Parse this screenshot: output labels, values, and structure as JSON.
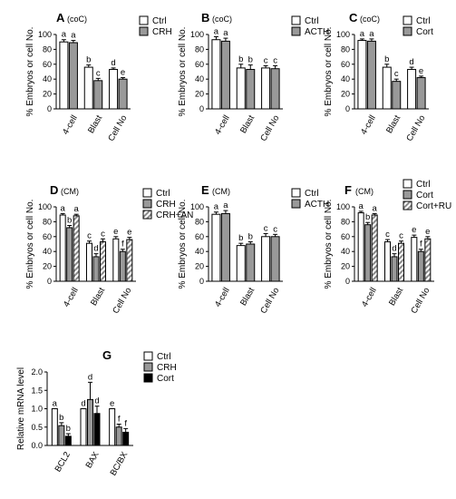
{
  "chart_data": [
    {
      "type": "bar",
      "panel": "A",
      "condition": "(coC)",
      "ylabel": "% Embryos or cell No.",
      "ylim": [
        0,
        100
      ],
      "yticks": [
        "0",
        "20",
        "40",
        "60",
        "80",
        "100"
      ],
      "categories": [
        "4-cell",
        "Blast",
        "Cell No"
      ],
      "series": [
        {
          "name": "Ctrl",
          "values": [
            90,
            56,
            53
          ],
          "errors": [
            3,
            3,
            2
          ],
          "letters": [
            "a",
            "b",
            "d"
          ]
        },
        {
          "name": "CRH",
          "values": [
            89,
            38,
            40
          ],
          "errors": [
            3,
            3,
            2
          ],
          "letters": [
            "a",
            "c",
            "e"
          ]
        }
      ]
    },
    {
      "type": "bar",
      "panel": "B",
      "condition": "(coC)",
      "ylabel": "% Embryos or cell No.",
      "ylim": [
        0,
        100
      ],
      "yticks": [
        "0",
        "20",
        "40",
        "60",
        "80",
        "100"
      ],
      "categories": [
        "4-cell",
        "Blast",
        "Cell No"
      ],
      "series": [
        {
          "name": "Ctrl",
          "values": [
            93,
            55,
            55
          ],
          "errors": [
            4,
            5,
            3
          ],
          "letters": [
            "a",
            "b",
            "c"
          ]
        },
        {
          "name": "ACTH",
          "values": [
            91,
            53,
            54
          ],
          "errors": [
            4,
            6,
            4
          ],
          "letters": [
            "a",
            "b",
            "c"
          ]
        }
      ]
    },
    {
      "type": "bar",
      "panel": "C",
      "condition": "(coC)",
      "ylabel": "% Embryos or cell No.",
      "ylim": [
        0,
        100
      ],
      "yticks": [
        "0",
        "20",
        "40",
        "60",
        "80",
        "100"
      ],
      "categories": [
        "4-cell",
        "Blast",
        "Cell No"
      ],
      "series": [
        {
          "name": "Ctrl",
          "values": [
            92,
            56,
            53
          ],
          "errors": [
            2,
            4,
            3
          ],
          "letters": [
            "a",
            "b",
            "d"
          ]
        },
        {
          "name": "Cort",
          "values": [
            91,
            37,
            42
          ],
          "errors": [
            3,
            3,
            2
          ],
          "letters": [
            "a",
            "c",
            "e"
          ]
        }
      ]
    },
    {
      "type": "bar",
      "panel": "D",
      "condition": "(CM)",
      "ylabel": "% Embryos or cell No.",
      "ylim": [
        0,
        100
      ],
      "yticks": [
        "0",
        "20",
        "40",
        "60",
        "80",
        "100"
      ],
      "categories": [
        "4-cell",
        "Blast",
        "Cell No"
      ],
      "series": [
        {
          "name": "Ctrl",
          "values": [
            89,
            51,
            57
          ],
          "errors": [
            2,
            3,
            3
          ],
          "letters": [
            "a",
            "c",
            "e"
          ]
        },
        {
          "name": "CRH",
          "values": [
            72,
            33,
            40
          ],
          "errors": [
            3,
            4,
            3
          ],
          "letters": [
            "b",
            "d",
            "f"
          ]
        },
        {
          "name": "CRH+AN",
          "values": [
            88,
            53,
            56
          ],
          "errors": [
            2,
            4,
            3
          ],
          "letters": [
            "a",
            "c",
            "e"
          ]
        }
      ]
    },
    {
      "type": "bar",
      "panel": "E",
      "condition": "(CM)",
      "ylabel": "% Embryos or cell No.",
      "ylim": [
        0,
        100
      ],
      "yticks": [
        "0",
        "20",
        "40",
        "60",
        "80",
        "100"
      ],
      "categories": [
        "4-cell",
        "Blast",
        "Cell No"
      ],
      "series": [
        {
          "name": "Ctrl",
          "values": [
            90,
            48,
            60
          ],
          "errors": [
            3,
            3,
            4
          ],
          "letters": [
            "a",
            "b",
            "c"
          ]
        },
        {
          "name": "ACTH",
          "values": [
            91,
            50,
            60
          ],
          "errors": [
            4,
            3,
            3
          ],
          "letters": [
            "a",
            "b",
            "c"
          ]
        }
      ]
    },
    {
      "type": "bar",
      "panel": "F",
      "condition": "(CM)",
      "ylabel": "% Embryos or cell No.",
      "ylim": [
        0,
        100
      ],
      "yticks": [
        "0",
        "20",
        "40",
        "60",
        "80",
        "100"
      ],
      "categories": [
        "4-cell",
        "Blast",
        "Cell No"
      ],
      "series": [
        {
          "name": "Ctrl",
          "values": [
            92,
            53,
            59
          ],
          "errors": [
            2,
            3,
            3
          ],
          "letters": [
            "a",
            "c",
            "e"
          ]
        },
        {
          "name": "Cort",
          "values": [
            76,
            33,
            40
          ],
          "errors": [
            3,
            4,
            3
          ],
          "letters": [
            "b",
            "d",
            "f"
          ]
        },
        {
          "name": "Cort+RU",
          "values": [
            89,
            51,
            57
          ],
          "errors": [
            2,
            3,
            3
          ],
          "letters": [
            "a",
            "c",
            "e"
          ]
        }
      ]
    },
    {
      "type": "bar",
      "panel": "G",
      "condition": "",
      "ylabel": "Relative mRNA level",
      "ylim": [
        0,
        2.0
      ],
      "yticks": [
        "0.0",
        "0.5",
        "1.0",
        "1.5",
        "2.0"
      ],
      "categories": [
        "BCL2",
        "BAX",
        "BC/BX"
      ],
      "series": [
        {
          "name": "Ctrl",
          "values": [
            1.0,
            1.0,
            1.0
          ],
          "errors": [
            0,
            0,
            0
          ],
          "letters": [
            "a",
            "d",
            "e"
          ]
        },
        {
          "name": "CRH",
          "values": [
            0.54,
            1.25,
            0.5
          ],
          "errors": [
            0.08,
            0.47,
            0.08
          ],
          "letters": [
            "b",
            "d",
            "f"
          ]
        },
        {
          "name": "Cort",
          "values": [
            0.25,
            0.87,
            0.36
          ],
          "errors": [
            0.07,
            0.2,
            0.1
          ],
          "letters": [
            "b",
            "d",
            "f"
          ]
        }
      ]
    }
  ],
  "colors": {
    "Ctrl": "#ffffff",
    "treat": "#999999",
    "combo_hatch": "#9a9a9a",
    "cort_g": "#000000"
  }
}
